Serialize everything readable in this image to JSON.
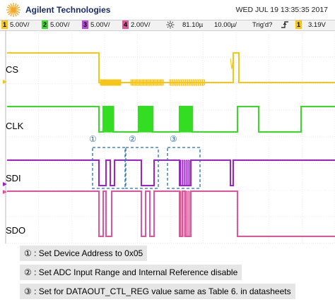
{
  "header": {
    "brand": "Agilent Technologies",
    "datetime": "WED JUL 19 13:35:35 2017"
  },
  "status_bar": {
    "channels": [
      {
        "num": "1",
        "value": "5.00V/",
        "color": "#f5c518"
      },
      {
        "num": "2",
        "value": "5.00V/",
        "color": "#33dd22"
      },
      {
        "num": "3",
        "value": "5.00V/",
        "color": "#b54dd6"
      },
      {
        "num": "4",
        "value": "2.00V/",
        "color": "#e8509a"
      }
    ],
    "trigger_icon": "sun-icon",
    "time_position": "81.10µ",
    "time_scale": "10.00µ/",
    "trigger_mode": "Trig'd?",
    "trigger_edge_icon": "rising-edge-icon",
    "trigger_channel": "1",
    "trigger_level": "3.19V"
  },
  "signals": [
    {
      "name": "CS",
      "color": "#f5c518"
    },
    {
      "name": "CLK",
      "color": "#33dd22"
    },
    {
      "name": "SDI",
      "color": "#a020d0"
    },
    {
      "name": "SDO",
      "color": "#e8509a"
    }
  ],
  "markers": [
    "①",
    "②",
    "③"
  ],
  "legend": [
    "① : Set Device Address to 0x05",
    "② : Set ADC Input Range and Internal Reference disable",
    "③ : Set for DATAOUT_CTL_REG value same as Table 6. in datasheets"
  ],
  "colors": {
    "grid": "#dddddd",
    "background": "#ffffff",
    "dashed_box": "#1f6fb5"
  }
}
